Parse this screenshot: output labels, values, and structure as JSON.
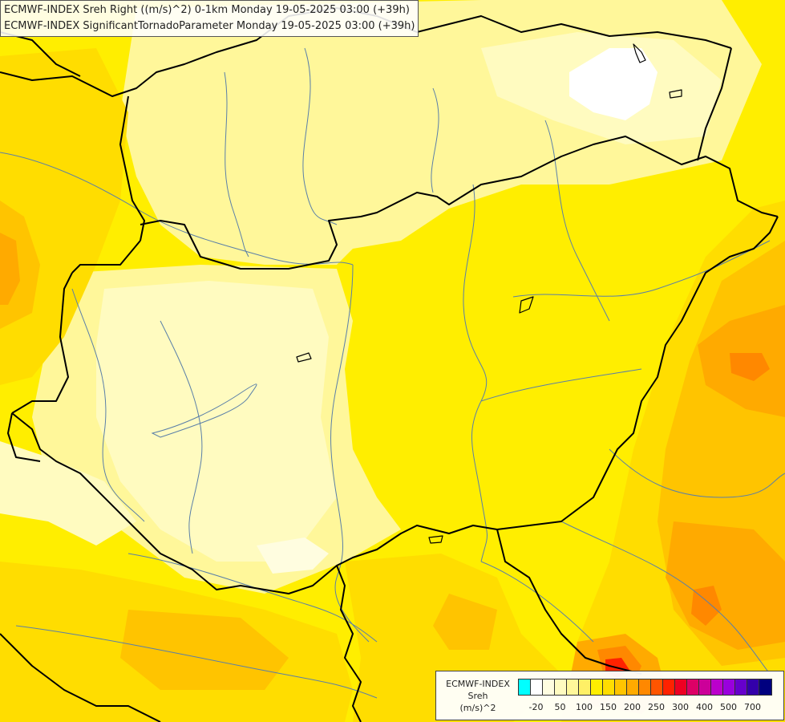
{
  "header": {
    "line1": "ECMWF-INDEX Sreh Right ((m/s)^2) 0-1km Monday 19-05-2025 03:00 (+39h)",
    "line2": "ECMWF-INDEX SignificantTornadoParameter Monday 19-05-2025 03:00 (+39h)"
  },
  "legend": {
    "title_line1": "ECMWF-INDEX",
    "title_line2": "Sreh",
    "title_line3": "(m/s)^2",
    "colors": [
      "#00ffff",
      "#ffffff",
      "#fffde0",
      "#fffbc0",
      "#fff79a",
      "#fff066",
      "#ffee00",
      "#ffdd00",
      "#ffc400",
      "#ffaa00",
      "#ff8800",
      "#ff5500",
      "#ff2200",
      "#ee0022",
      "#dd0066",
      "#cc0099",
      "#bb00cc",
      "#9900dd",
      "#6600cc",
      "#3300aa",
      "#00007f"
    ],
    "ticks": [
      {
        "label": "-20",
        "pos": 1
      },
      {
        "label": "50",
        "pos": 3
      },
      {
        "label": "100",
        "pos": 5
      },
      {
        "label": "150",
        "pos": 7
      },
      {
        "label": "200",
        "pos": 9
      },
      {
        "label": "250",
        "pos": 11
      },
      {
        "label": "300",
        "pos": 13
      },
      {
        "label": "400",
        "pos": 15
      },
      {
        "label": "500",
        "pos": 17
      },
      {
        "label": "700",
        "pos": 19
      }
    ]
  },
  "map": {
    "field_colors": {
      "very_light": "#ffffff",
      "pale": "#fffbc0",
      "light": "#fff79a",
      "yellow": "#ffee00",
      "gold": "#ffdd00",
      "orange_light": "#ffc400",
      "orange": "#ffaa00",
      "orange_dark": "#ff8800",
      "red_orange": "#ff5500",
      "red": "#ff2200"
    },
    "border_color": "#000000",
    "river_color": "#5a7fa8"
  }
}
